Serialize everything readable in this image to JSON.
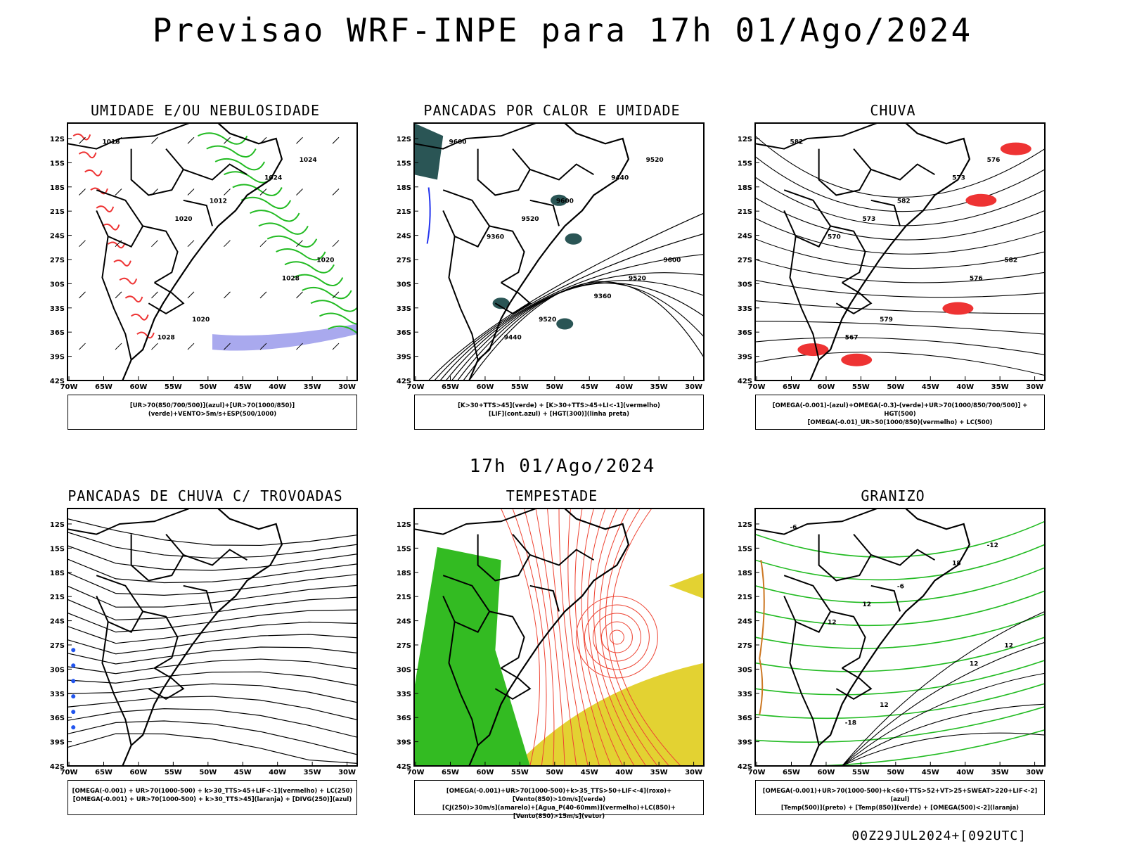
{
  "title": "Previsao WRF-INPE  para 17h 01/Ago/2024",
  "mid_date": "17h 01/Ago/2024",
  "footer": "00Z29JUL2024+[092UTC]",
  "axes": {
    "lat_labels": [
      "12S",
      "15S",
      "18S",
      "21S",
      "24S",
      "27S",
      "30S",
      "33S",
      "36S",
      "39S",
      "42S"
    ],
    "lon_labels": [
      "70W",
      "65W",
      "60W",
      "55W",
      "50W",
      "45W",
      "40W",
      "35W",
      "30W"
    ]
  },
  "panels": [
    {
      "id": "umidade",
      "title": "UMIDADE E/OU NEBULOSIDADE",
      "legend": [
        "[UR>70(850/700/500)](azul)+[UR>70(1000/850)](verde)+VENTO>5m/s+ESP(500/1000)"
      ],
      "contour_labels": [
        "1016",
        "1012",
        "1020",
        "1020",
        "1024",
        "1020",
        "1028",
        "1028",
        "1024"
      ]
    },
    {
      "id": "pancadas-calor",
      "title": "PANCADAS POR CALOR E UMIDADE",
      "legend": [
        "[K>30+TTS>45](verde) + [K>30+TTS>45+LI<-1](vermelho)",
        "[LIF](cont.azul) + [HGT(300)](linha preta)"
      ],
      "contour_labels": [
        "9600",
        "9600",
        "9600",
        "9520",
        "9520",
        "9520",
        "9520",
        "9440",
        "9440",
        "9360",
        "9360"
      ]
    },
    {
      "id": "chuva",
      "title": "CHUVA",
      "legend": [
        "[OMEGA(-0.001)-(azul)+OMEGA(-0.3)-(verde)+UR>70(1000/850/700/500)] + HGT(500)",
        "[OMEGA(-0.01)_UR>50(1000/850)(vermelho) + LC(500)"
      ],
      "contour_labels": [
        "582",
        "582",
        "582",
        "579",
        "576",
        "573",
        "576",
        "567",
        "573",
        "570"
      ]
    },
    {
      "id": "pancadas-trovoadas",
      "title": "PANCADAS DE CHUVA C/ TROVOADAS",
      "legend": [
        "[OMEGA(-0.001) + UR>70(1000-500) + k>30_TTS>45+LIF<-1](vermelho) + LC(250)",
        "[OMEGA(-0.001) + UR>70(1000-500) + k>30_TTS>45](laranja) + [DIVG(250)](azul)"
      ],
      "contour_labels": []
    },
    {
      "id": "tempestade",
      "title": "TEMPESTADE",
      "legend": [
        "[OMEGA(-0.001)+UR>70(1000-500)+k>35_TTS>50+LIF<-4](roxo)+[Vento(850)>10m/s](verde)",
        "[CJ(250)>30m/s](amarelo)+[Agua_P(40-60mm)](vermelho)+LC(850)+[Vento(850)>15m/s](vetor)"
      ],
      "contour_labels": []
    },
    {
      "id": "granizo",
      "title": "GRANIZO",
      "legend": [
        "[OMEGA(-0.001)+UR>70(1000-500)+k<60+TTS>52+VT>25+SWEAT>220+LIF<-2](azul)",
        "[Temp(500)](preto) + [Temp(850)](verde) + [OMEGA(500)<-2](laranja)"
      ],
      "contour_labels": [
        "-6",
        "-6",
        "12",
        "12",
        "-12",
        "12",
        "12",
        "-18",
        "18",
        "12"
      ]
    }
  ]
}
